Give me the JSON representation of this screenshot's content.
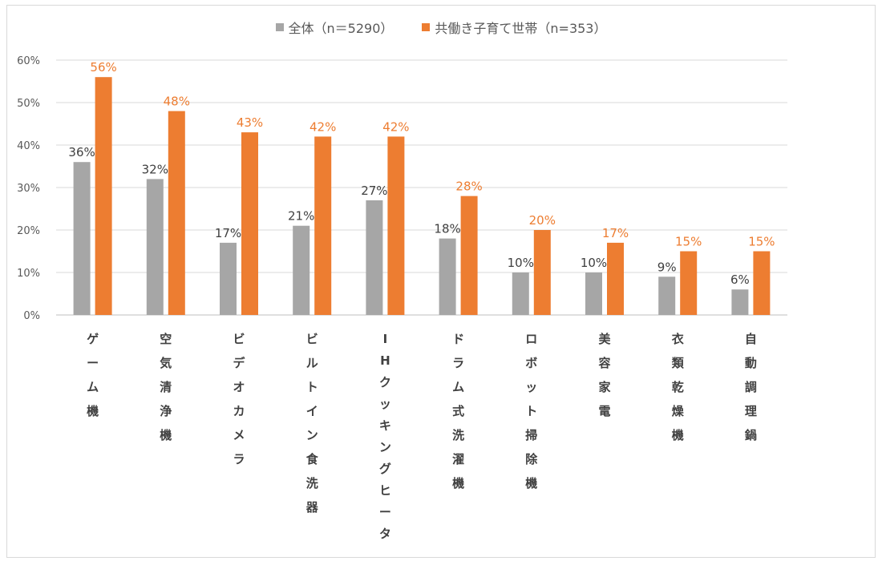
{
  "chart_data": {
    "type": "bar",
    "categories": [
      "ゲーム機",
      "空気清浄機",
      "ビデオカメラ",
      "ビルトイン食洗器",
      "IHクッキングヒータ",
      "ドラム式洗濯機",
      "ロボット掃除機",
      "美容家電",
      "衣類乾燥機",
      "自動調理鍋"
    ],
    "series": [
      {
        "name": "全体（n＝5290）",
        "color": "#a6a6a6",
        "label_color": "#404040",
        "values": [
          36,
          32,
          17,
          21,
          27,
          18,
          10,
          10,
          9,
          6
        ]
      },
      {
        "name": "共働き子育て世帯（n=353）",
        "color": "#ed7d31",
        "label_color": "#ed7d31",
        "values": [
          56,
          48,
          43,
          42,
          42,
          28,
          20,
          17,
          15,
          15
        ]
      }
    ],
    "value_suffix": "%",
    "ylim": [
      0,
      60
    ],
    "yticks": [
      0,
      10,
      20,
      30,
      40,
      50,
      60
    ],
    "grid": true,
    "legend_position": "top"
  }
}
